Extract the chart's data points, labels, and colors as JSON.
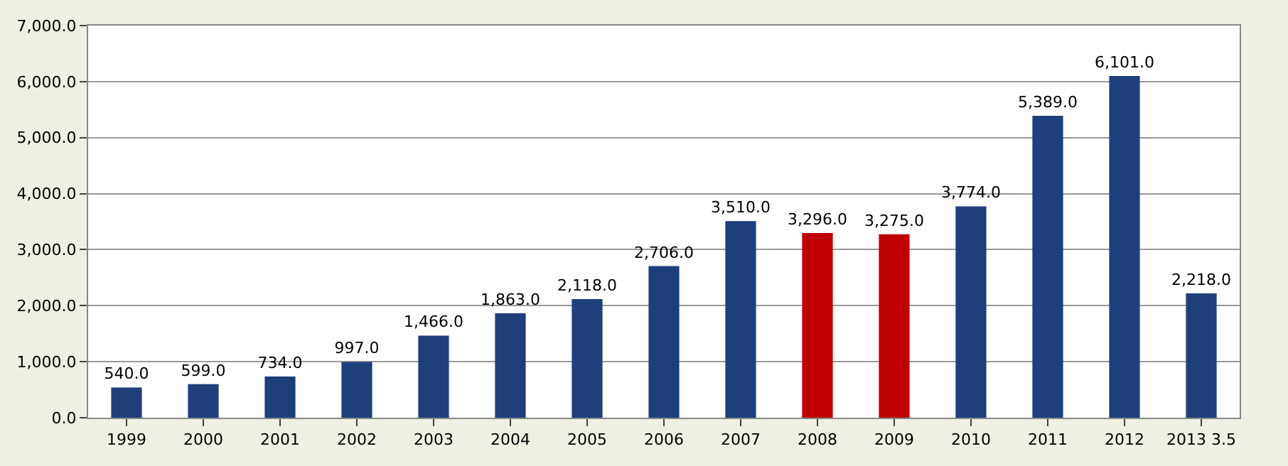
{
  "chart_data": {
    "type": "bar",
    "categories": [
      "1999",
      "2000",
      "2001",
      "2002",
      "2003",
      "2004",
      "2005",
      "2006",
      "2007",
      "2008",
      "2009",
      "2010",
      "2011",
      "2012",
      "2013 3.5"
    ],
    "values": [
      540,
      599,
      734,
      997,
      1466,
      1863,
      2118,
      2706,
      3510,
      3296,
      3275,
      3774,
      5389,
      6101,
      2218
    ],
    "colors": [
      "#1f3f7a",
      "#1f3f7a",
      "#1f3f7a",
      "#1f3f7a",
      "#1f3f7a",
      "#1f3f7a",
      "#1f3f7a",
      "#1f3f7a",
      "#1f3f7a",
      "#c00000",
      "#c00000",
      "#1f3f7a",
      "#1f3f7a",
      "#1f3f7a",
      "#1f3f7a"
    ],
    "value_labels": [
      "540.0",
      "599.0",
      "734.0",
      "997.0",
      "1,466.0",
      "1,863.0",
      "2,118.0",
      "2,706.0",
      "3,510.0",
      "3,296.0",
      "3,275.0",
      "3,774.0",
      "5,389.0",
      "6,101.0",
      "2,218.0"
    ],
    "ylim": [
      0,
      7000
    ],
    "yticks": [
      {
        "value": 0,
        "label": "0.0"
      },
      {
        "value": 1000,
        "label": "1,000.0"
      },
      {
        "value": 2000,
        "label": "2,000.0"
      },
      {
        "value": 3000,
        "label": "3,000.0"
      },
      {
        "value": 4000,
        "label": "4,000.0"
      },
      {
        "value": 5000,
        "label": "5,000.0"
      },
      {
        "value": 6000,
        "label": "6,000.0"
      },
      {
        "value": 7000,
        "label": "7,000.0"
      }
    ],
    "grid": "y"
  }
}
